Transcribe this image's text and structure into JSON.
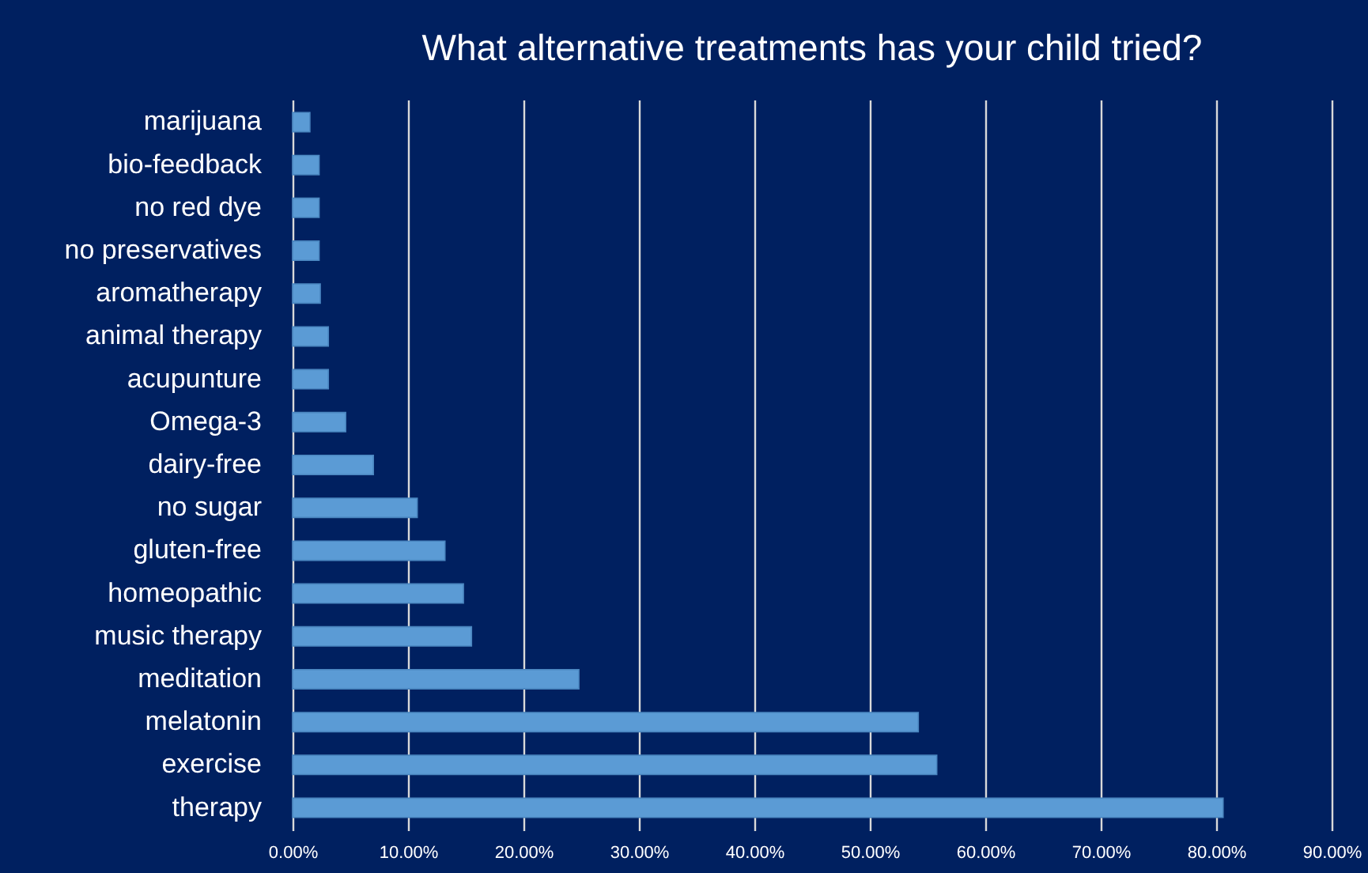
{
  "chart_data": {
    "type": "bar",
    "orientation": "horizontal",
    "title": "What alternative treatments has your child tried?",
    "categories": [
      "marijuana",
      "bio-feedback",
      "no red dye",
      "no preservatives",
      "aromatherapy",
      "animal therapy",
      "acupunture",
      "Omega-3",
      "dairy-free",
      "no sugar",
      "gluten-free",
      "homeopathic",
      "music therapy",
      "meditation",
      "melatonin",
      "exercise",
      "therapy"
    ],
    "values": [
      1.5,
      2.3,
      2.3,
      2.3,
      2.4,
      3.1,
      3.1,
      4.6,
      7.0,
      10.8,
      13.2,
      14.8,
      15.5,
      24.8,
      54.2,
      55.8,
      80.6
    ],
    "color": "#5b9bd5",
    "xlim": [
      0,
      90
    ],
    "xticks": [
      {
        "value": 0,
        "label": "0.00%"
      },
      {
        "value": 10,
        "label": "10.00%"
      },
      {
        "value": 20,
        "label": "20.00%"
      },
      {
        "value": 30,
        "label": "30.00%"
      },
      {
        "value": 40,
        "label": "40.00%"
      },
      {
        "value": 50,
        "label": "50.00%"
      },
      {
        "value": 60,
        "label": "60.00%"
      },
      {
        "value": 70,
        "label": "70.00%"
      },
      {
        "value": 80,
        "label": "80.00%"
      },
      {
        "value": 90,
        "label": "90.00%"
      }
    ],
    "grid": "x"
  }
}
